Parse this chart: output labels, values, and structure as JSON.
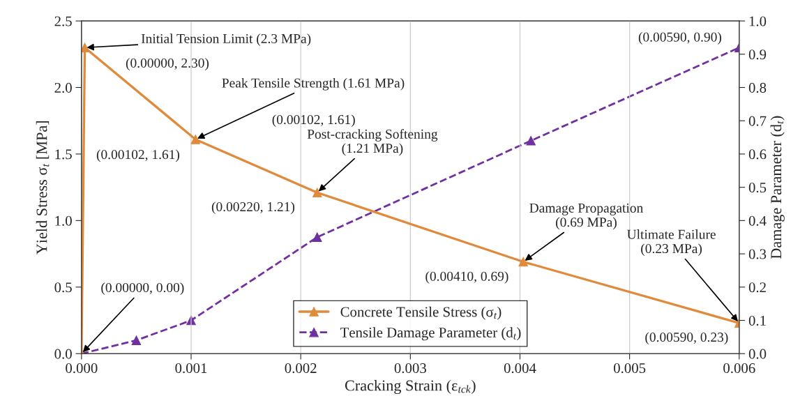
{
  "chart_data": {
    "type": "line",
    "xlabel": "Cracking Strain (ε$_{tck}$)",
    "ylabel": "Yield Stress σ$_{t}$ [MPa]",
    "y2label": "Damage Parameter (d$_{t}$)",
    "xlim": [
      0,
      0.006
    ],
    "xticks": [
      {
        "value": 0,
        "label": "0.000"
      },
      {
        "value": 0.001,
        "label": "0.001"
      },
      {
        "value": 0.002,
        "label": "0.002"
      },
      {
        "value": 0.003,
        "label": "0.003"
      },
      {
        "value": 0.004,
        "label": "0.004"
      },
      {
        "value": 0.005,
        "label": "0.005"
      },
      {
        "value": 0.006,
        "label": "0.006"
      }
    ],
    "ylim": [
      0,
      2.5
    ],
    "yticks": [
      {
        "value": 0,
        "label": "0.0"
      },
      {
        "value": 0.5,
        "label": "0.5"
      },
      {
        "value": 1,
        "label": "1.0"
      },
      {
        "value": 1.5,
        "label": "1.5"
      },
      {
        "value": 2,
        "label": "2.0"
      },
      {
        "value": 2.5,
        "label": "2.5"
      }
    ],
    "y2lim": [
      0,
      1
    ],
    "y2ticks": [
      {
        "value": 0,
        "label": "0.0"
      },
      {
        "value": 0.1,
        "label": "0.1"
      },
      {
        "value": 0.2,
        "label": "0.2"
      },
      {
        "value": 0.3,
        "label": "0.3"
      },
      {
        "value": 0.4,
        "label": "0.4"
      },
      {
        "value": 0.5,
        "label": "0.5"
      },
      {
        "value": 0.6,
        "label": "0.6"
      },
      {
        "value": 0.7,
        "label": "0.7"
      },
      {
        "value": 0.8,
        "label": "0.8"
      },
      {
        "value": 0.9,
        "label": "0.9"
      },
      {
        "value": 1,
        "label": "1.0"
      }
    ],
    "grid": "x",
    "legend": "bottom",
    "series": [
      {
        "name": "Concrete Tensile Stress (σ$_{t}$)",
        "color": "#e08a3c",
        "marker": "triangle",
        "line_style": "solid",
        "x": [
          0,
          3e-05,
          0.00104,
          0.00215,
          0.00403,
          0.006
        ],
        "values": [
          0,
          2.3,
          1.61,
          1.21,
          0.69,
          0.23
        ]
      },
      {
        "name": "Tensile Damage Parameter (d$_{t}$)",
        "color": "#7030a0",
        "axis": "y2",
        "marker": "triangle",
        "line_style": "dashed",
        "x": [
          0,
          0.0005,
          0.001,
          0.00215,
          0.0041,
          0.006
        ],
        "values": [
          0,
          0.04,
          0.1,
          0.35,
          0.64,
          0.92
        ]
      }
    ],
    "annotations": [
      {
        "text": "Initial Tension Limit (2.3 MPa)",
        "x": 3e-05,
        "y": 2.3
      },
      "(0.00000, 2.30)",
      {
        "text": "Peak Tensile Strength (1.61 MPa)",
        "x": 0.00104,
        "y": 1.61
      },
      "(0.00102, 1.61)",
      "(0.00102, 1.61)",
      {
        "text": "Post-cracking Softening\n(1.21 MPa)",
        "x": 0.00215,
        "y": 1.21
      },
      "(0.00220, 1.21)",
      {
        "text": "Damage Propagation\n(0.69 MPa)",
        "x": 0.00403,
        "y": 0.69
      },
      "(0.00410, 0.69)",
      {
        "text": "Ultimate Failure\n(0.23 MPa)",
        "x": 0.006,
        "y": 0.23
      },
      "(0.00590, 0.23)",
      {
        "text": "(0.00000, 0.00)",
        "x": 0,
        "y": 0
      },
      "(0.00590, 0.90)"
    ]
  }
}
